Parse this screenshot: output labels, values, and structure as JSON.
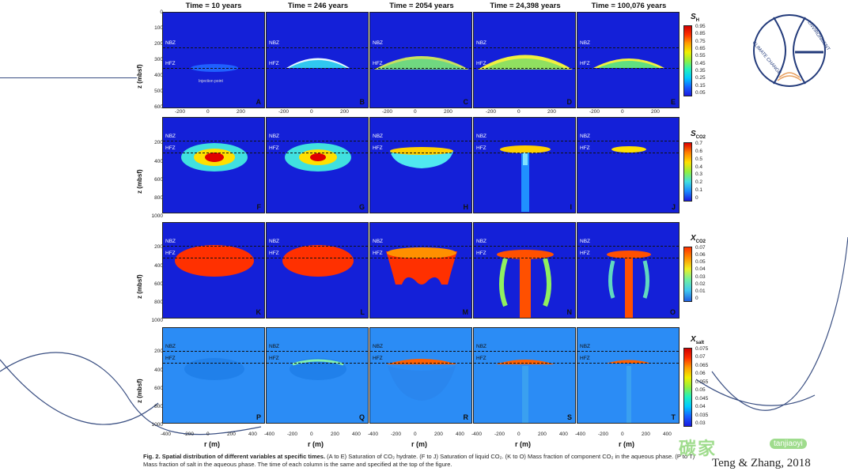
{
  "column_titles": [
    "Time = 10 years",
    "Time = 246 years",
    "Time = 2054 years",
    "Time = 24,398 years",
    "Time = 100,076 years"
  ],
  "row_ylabel": "z (mbsf)",
  "x_label": "r (m)",
  "zone_labels": {
    "nbz": "NBZ",
    "hfz": "HFZ"
  },
  "injection_label": "Injection point",
  "letters": [
    [
      "A",
      "B",
      "C",
      "D",
      "E"
    ],
    [
      "F",
      "G",
      "H",
      "I",
      "J"
    ],
    [
      "K",
      "L",
      "M",
      "N",
      "O"
    ],
    [
      "P",
      "Q",
      "R",
      "S",
      "T"
    ]
  ],
  "row1_yticks": [
    "0",
    "100",
    "200",
    "300",
    "400",
    "500",
    "600"
  ],
  "row_other_yticks": [
    "200",
    "400",
    "600",
    "800",
    "1000"
  ],
  "row1_xticks": [
    "-200",
    "0",
    "200"
  ],
  "row_bottom_xticks": [
    "-400",
    "-200",
    "0",
    "200",
    "400"
  ],
  "colorbars": [
    {
      "title": "S",
      "sub": "H",
      "ticks": [
        "0.95",
        "0.85",
        "0.75",
        "0.65",
        "0.55",
        "0.45",
        "0.35",
        "0.25",
        "0.15",
        "0.05"
      ]
    },
    {
      "title": "S",
      "sub": "CO2",
      "ticks": [
        "0.7",
        "0.6",
        "0.5",
        "0.4",
        "0.3",
        "0.2",
        "0.1",
        "0"
      ]
    },
    {
      "title": "X",
      "sub": "CO2",
      "ticks": [
        "0.07",
        "0.06",
        "0.05",
        "0.04",
        "0.03",
        "0.02",
        "0.01",
        "0"
      ]
    },
    {
      "title": "X",
      "sub": "salt",
      "ticks": [
        "0.075",
        "0.07",
        "0.065",
        "0.06",
        "0.055",
        "0.05",
        "0.045",
        "0.04",
        "0.035",
        "0.03"
      ]
    }
  ],
  "caption": {
    "lead": "Fig. 2. Spatial distribution of different variables at specific times.",
    "body": " (A to E) Saturation of CO₂ hydrate. (F to J) Saturation of liquid CO₂. (K to O) Mass fraction of component CO₂ in the aqueous phase. (P to T) Mass fraction of salt in the aqueous phase. The time of each column is the same and specified at the top of the figure."
  },
  "credit": "Teng & Zhang, 2018",
  "watermark": {
    "text": "碳家",
    "tag": "tanjiaoyi"
  },
  "logo_text": {
    "left": "CLIMATE CHANGE",
    "right": "ENVIRONMENT"
  },
  "colors": {
    "accent_line": "#3a4f82",
    "panel_blue": "#1420d8",
    "salt_blue": "#2b8cf5"
  }
}
